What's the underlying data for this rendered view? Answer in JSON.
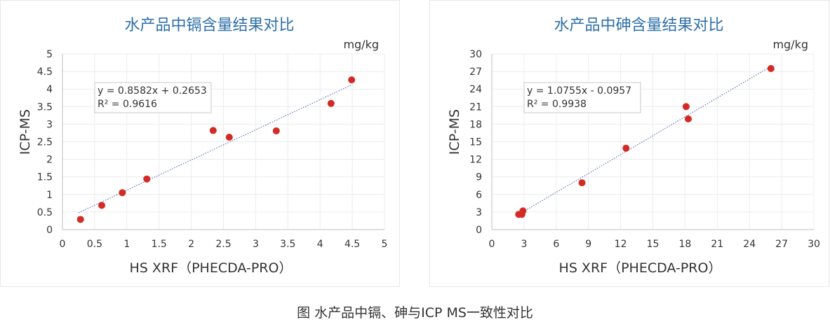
{
  "caption": "图 水产品中镉、砷与ICP MS一致性对比",
  "colors": {
    "title": "#2e6fa8",
    "point": "#d42a24",
    "trendline": "#3f5b9f",
    "grid": "#ececec",
    "axis": "#bfbfbf",
    "text": "#333333"
  },
  "chart_data": [
    {
      "type": "scatter",
      "title": "水产品中镉含量结果对比",
      "unit_label": "mg/kg",
      "xlabel": "HS XRF（PHECDA-PRO）",
      "ylabel": "ICP-MS",
      "xlim": [
        0,
        5
      ],
      "ylim": [
        0,
        5
      ],
      "x_ticks": [
        0,
        0.5,
        1,
        1.5,
        2,
        2.5,
        3,
        3.5,
        4,
        4.5,
        5
      ],
      "x_tick_labels": [
        "0",
        "0.5",
        "1",
        "1.5",
        "2",
        "2.5",
        "3",
        "3.5",
        "4",
        "4.5",
        "5"
      ],
      "y_ticks": [
        0,
        0.5,
        1,
        1.5,
        2,
        2.5,
        3,
        3.5,
        4,
        4.5,
        5
      ],
      "y_tick_labels": [
        "0",
        "0.5",
        "1",
        "1.5",
        "2",
        "2.5",
        "3",
        "3.5",
        "4",
        "4.5",
        "5"
      ],
      "grid": true,
      "trendline": {
        "slope": 0.8582,
        "intercept": 0.2653,
        "x_range": [
          0.25,
          4.5
        ],
        "equation": "y = 0.8582x + 0.2653",
        "r2": "R² = 0.9616"
      },
      "points": [
        {
          "x": 0.28,
          "y": 0.29
        },
        {
          "x": 0.61,
          "y": 0.69
        },
        {
          "x": 0.93,
          "y": 1.05
        },
        {
          "x": 1.31,
          "y": 1.44
        },
        {
          "x": 2.34,
          "y": 2.82
        },
        {
          "x": 2.59,
          "y": 2.63
        },
        {
          "x": 3.32,
          "y": 2.81
        },
        {
          "x": 4.17,
          "y": 3.59
        },
        {
          "x": 4.49,
          "y": 4.26
        }
      ]
    },
    {
      "type": "scatter",
      "title": "水产品中砷含量结果对比",
      "unit_label": "mg/kg",
      "xlabel": "HS XRF（PHECDA-PRO）",
      "ylabel": "ICP-MS",
      "xlim": [
        0,
        30
      ],
      "ylim": [
        0,
        30
      ],
      "x_ticks": [
        0,
        3,
        6,
        9,
        12,
        15,
        18,
        21,
        24,
        27,
        30
      ],
      "x_tick_labels": [
        "0",
        "3",
        "6",
        "9",
        "12",
        "15",
        "18",
        "21",
        "24",
        "27",
        "30"
      ],
      "y_ticks": [
        0,
        3,
        6,
        9,
        12,
        15,
        18,
        21,
        24,
        27,
        30
      ],
      "y_tick_labels": [
        "0",
        "3",
        "6",
        "9",
        "12",
        "15",
        "18",
        "21",
        "24",
        "27",
        "30"
      ],
      "grid": true,
      "trendline": {
        "slope": 1.0755,
        "intercept": -0.0957,
        "x_range": [
          2.5,
          26
        ],
        "equation": "y = 1.0755x - 0.0957",
        "r2": "R² = 0.9938"
      },
      "points": [
        {
          "x": 2.5,
          "y": 2.6
        },
        {
          "x": 2.8,
          "y": 2.6
        },
        {
          "x": 2.9,
          "y": 3.2
        },
        {
          "x": 8.4,
          "y": 8.0
        },
        {
          "x": 12.5,
          "y": 13.9
        },
        {
          "x": 18.1,
          "y": 21.0
        },
        {
          "x": 18.3,
          "y": 18.9
        },
        {
          "x": 26.0,
          "y": 27.5
        }
      ]
    }
  ]
}
